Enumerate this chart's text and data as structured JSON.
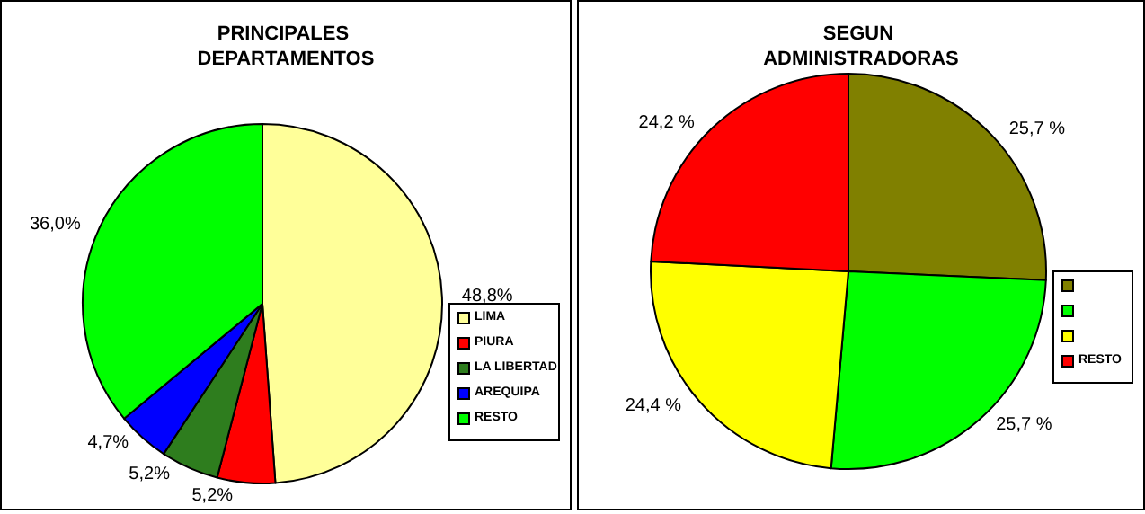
{
  "chart_data": [
    {
      "type": "pie",
      "title": "PRINCIPALES DEPARTAMENTOS",
      "categories": [
        "LIMA",
        "PIURA",
        "LA LIBERTAD",
        "AREQUIPA",
        "RESTO"
      ],
      "values": [
        48.8,
        5.2,
        5.2,
        4.7,
        36.0
      ],
      "value_labels": [
        "48,8%",
        "5,2%",
        "5,2%",
        "4,7%",
        "36,0%"
      ],
      "colors": [
        "#ffff99",
        "#ff0000",
        "#2e7d1e",
        "#0000ff",
        "#00ff00"
      ],
      "legend": "right"
    },
    {
      "type": "pie",
      "title": "SEGUN ADMINISTRADORAS",
      "categories": [
        null,
        null,
        null,
        "RESTO"
      ],
      "values": [
        25.7,
        25.7,
        24.4,
        24.2
      ],
      "value_labels": [
        "25,7 %",
        "25,7 %",
        "24,4 %",
        "24,2 %"
      ],
      "colors": [
        "#808000",
        "#00ff00",
        "#ffff00",
        "#ff0000"
      ],
      "legend": "right"
    }
  ]
}
